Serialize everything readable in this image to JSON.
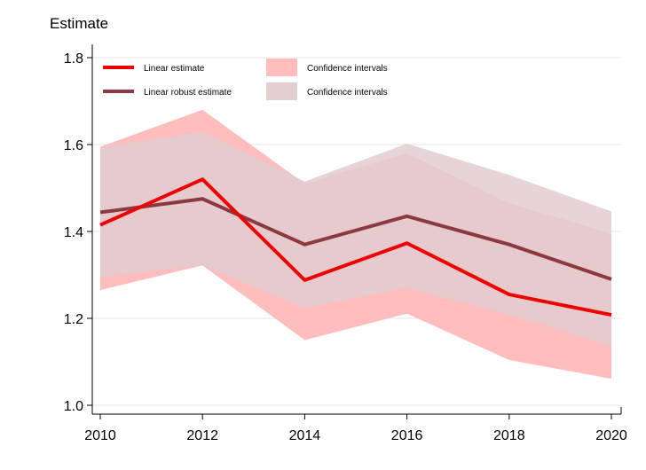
{
  "chart_data": {
    "type": "line",
    "title": "",
    "xlabel": "",
    "ylabel": "Estimate",
    "x": [
      2010,
      2012,
      2014,
      2016,
      2018,
      2020
    ],
    "xlim": [
      2010,
      2020
    ],
    "ylim": [
      1.0,
      1.8
    ],
    "xticks": [
      "2010",
      "2012",
      "2014",
      "2016",
      "2018",
      "2020"
    ],
    "yticks": [
      "1.0",
      "1.2",
      "1.4",
      "1.6",
      "1.8"
    ],
    "grid": true,
    "legend_position": "top-left",
    "series": [
      {
        "name": "Linear estimate",
        "values": [
          1.415,
          1.52,
          1.288,
          1.373,
          1.255,
          1.208
        ],
        "color": "#ee0000",
        "ci_label": "Confidence intervals",
        "ci_color": "#ffbdbd",
        "ci_lower": [
          1.265,
          1.322,
          1.15,
          1.211,
          1.104,
          1.061
        ],
        "ci_upper": [
          1.595,
          1.68,
          1.51,
          1.58,
          1.465,
          1.395
        ]
      },
      {
        "name": "Linear robust estimate",
        "values": [
          1.444,
          1.475,
          1.37,
          1.435,
          1.37,
          1.29
        ],
        "color": "#8b3a42",
        "ci_label": "Confidence intervals",
        "ci_color": "#e2cdd0",
        "ci_lower": [
          1.295,
          1.322,
          1.224,
          1.271,
          1.208,
          1.137
        ],
        "ci_upper": [
          1.593,
          1.63,
          1.515,
          1.602,
          1.53,
          1.446
        ]
      }
    ]
  }
}
